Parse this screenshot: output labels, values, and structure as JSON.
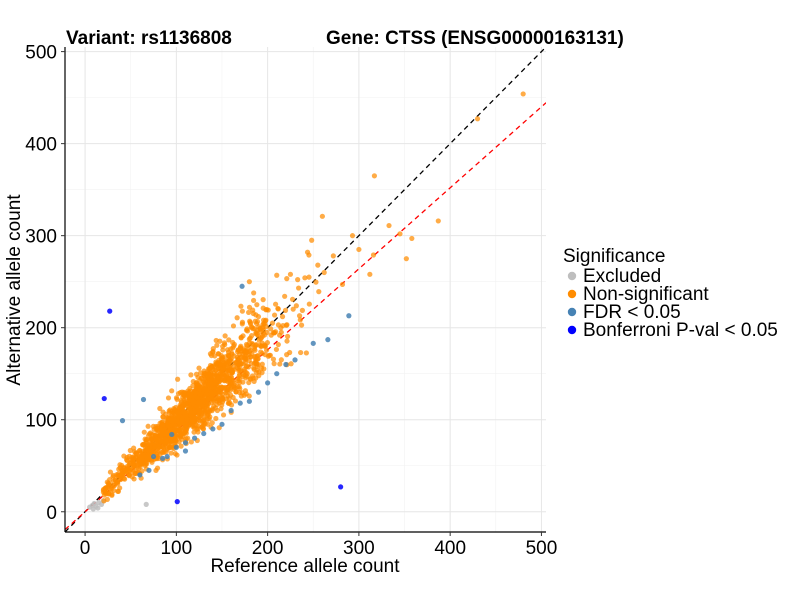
{
  "chart_data": {
    "type": "scatter",
    "title_left": "Variant: rs1136808",
    "title_right": "Gene: CTSS (ENSG00000163131)",
    "xlabel": "Reference allele count",
    "ylabel": "Alternative allele count",
    "xlim": [
      -22,
      505
    ],
    "ylim": [
      -22,
      505
    ],
    "xticks": [
      0,
      100,
      200,
      300,
      400,
      500
    ],
    "yticks": [
      0,
      100,
      200,
      300,
      400,
      500
    ],
    "grid": true,
    "legend_position": "right",
    "legend_title": "Significance",
    "reference_lines": [
      {
        "name": "identity",
        "slope": 1.0,
        "intercept": 0,
        "color": "#000000",
        "dash": "dashed"
      },
      {
        "name": "fit",
        "slope": 0.88,
        "intercept": 0,
        "color": "#ff0000",
        "dash": "dashed"
      }
    ],
    "series": [
      {
        "name": "Excluded",
        "color": "#bebebe",
        "points": [
          [
            5,
            5
          ],
          [
            8,
            7
          ],
          [
            10,
            9
          ],
          [
            12,
            6
          ],
          [
            15,
            10
          ],
          [
            18,
            8
          ],
          [
            20,
            12
          ],
          [
            67,
            8
          ],
          [
            9,
            3
          ],
          [
            14,
            4
          ]
        ]
      },
      {
        "name": "Non-significant",
        "color": "#ff8c00",
        "generated": {
          "count": 1500,
          "x_range": [
            20,
            270
          ],
          "slope": 0.96,
          "spread": 0.13,
          "seed": 7
        },
        "points": [
          [
            480,
            454
          ],
          [
            430,
            427
          ],
          [
            317,
            365
          ],
          [
            260,
            321
          ],
          [
            387,
            316
          ],
          [
            358,
            297
          ],
          [
            333,
            311
          ],
          [
            352,
            275
          ],
          [
            345,
            302
          ],
          [
            316,
            279
          ],
          [
            312,
            258
          ],
          [
            293,
            300
          ],
          [
            272,
            278
          ],
          [
            282,
            247
          ],
          [
            255,
            268
          ],
          [
            262,
            260
          ],
          [
            300,
            285
          ],
          [
            225,
            258
          ],
          [
            210,
            257
          ],
          [
            235,
            213
          ],
          [
            215,
            195
          ],
          [
            180,
            250
          ]
        ]
      },
      {
        "name": "FDR < 0.05",
        "color": "#4682b4",
        "points": [
          [
            41,
            99
          ],
          [
            64,
            122
          ],
          [
            172,
            245
          ],
          [
            266,
            187
          ],
          [
            289,
            213
          ],
          [
            250,
            183
          ],
          [
            220,
            160
          ],
          [
            200,
            140
          ],
          [
            190,
            130
          ],
          [
            180,
            120
          ],
          [
            160,
            110
          ],
          [
            150,
            95
          ],
          [
            130,
            85
          ],
          [
            120,
            80
          ],
          [
            110,
            75
          ],
          [
            100,
            70
          ],
          [
            90,
            60
          ],
          [
            85,
            58
          ],
          [
            140,
            90
          ],
          [
            170,
            118
          ],
          [
            230,
            165
          ],
          [
            210,
            150
          ],
          [
            60,
            40
          ],
          [
            70,
            45
          ],
          [
            110,
            66
          ],
          [
            95,
            84
          ],
          [
            75,
            60
          ]
        ]
      },
      {
        "name": "Bonferroni P-val < 0.05",
        "color": "#0000ff",
        "points": [
          [
            27,
            218
          ],
          [
            21,
            123
          ],
          [
            101,
            11
          ],
          [
            280,
            27
          ]
        ]
      }
    ]
  }
}
